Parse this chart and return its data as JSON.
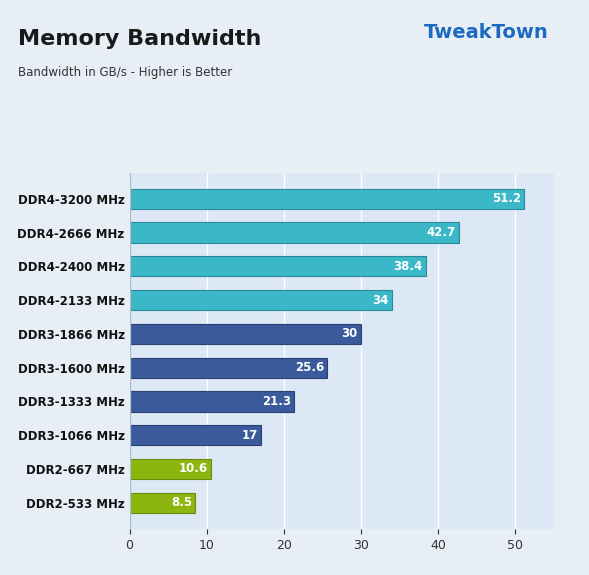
{
  "title": "Memory Bandwidth",
  "subtitle": "Bandwidth in GB/s - Higher is Better",
  "categories": [
    "DDR2-533 MHz",
    "DDR2-667 MHz",
    "DDR3-1066 MHz",
    "DDR3-1333 MHz",
    "DDR3-1600 MHz",
    "DDR3-1866 MHz",
    "DDR4-2133 MHz",
    "DDR4-2400 MHz",
    "DDR4-2666 MHz",
    "DDR4-3200 MHz"
  ],
  "values": [
    8.5,
    10.6,
    17,
    21.3,
    25.6,
    30,
    34,
    38.4,
    42.7,
    51.2
  ],
  "bar_colors": [
    "#8db510",
    "#8db510",
    "#3a5a9c",
    "#3a5a9c",
    "#3a5a9c",
    "#3a5a9c",
    "#3ab8c8",
    "#3ab8c8",
    "#3ab8c8",
    "#3ab8c8"
  ],
  "bar_edge_colors": [
    "#6a8a0c",
    "#6a8a0c",
    "#2a4070",
    "#2a4070",
    "#2a4070",
    "#2a4070",
    "#2a8a98",
    "#2a8a98",
    "#2a8a98",
    "#2a8a98"
  ],
  "bg_color": "#d8e4f0",
  "plot_bg_color": "#dce8f5",
  "outer_bg_color": "#e8eef5",
  "xlim": [
    0,
    55
  ],
  "xticks": [
    0,
    10,
    20,
    30,
    40,
    50
  ],
  "value_label_color": "#ffffff",
  "title_color": "#1a1a1a",
  "subtitle_color": "#333333"
}
